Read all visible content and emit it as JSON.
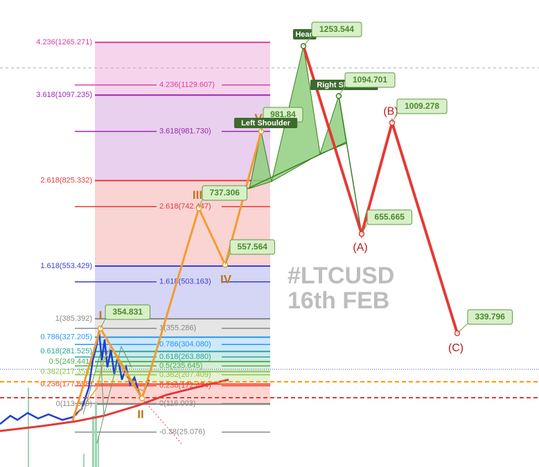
{
  "chart_data": {
    "type": "elliott-wave",
    "watermark": {
      "ticker": "#LTCUSD",
      "date": "16th FEB"
    },
    "fib_left": [
      {
        "value": 1265.271,
        "label": "4.236(1265.271)",
        "color": "#d63fa8"
      },
      {
        "value": 1097.235,
        "label": "3.618(1097.235)",
        "color": "#9c27b0"
      },
      {
        "value": 825.332,
        "label": "2.618(825.332)",
        "color": "#e53935"
      },
      {
        "value": 553.429,
        "label": "1.618(553.429)",
        "color": "#3f3fd0"
      },
      {
        "value": 385.392,
        "label": "1(385.392)",
        "color": "#888888"
      },
      {
        "value": 327.205,
        "label": "0.786(327.205)",
        "color": "#2196f3"
      },
      {
        "value": 281.525,
        "label": "0.618(281.525)",
        "color": "#26a69a"
      },
      {
        "value": 249.441,
        "label": "0.5(249.441)",
        "color": "#4caf50"
      },
      {
        "value": 217.358,
        "label": "0.382(217.358)",
        "color": "#8bc34a"
      },
      {
        "value": 177.658,
        "label": "0.236(177.658)",
        "color": "#f44336"
      },
      {
        "value": 113.889,
        "label": "0(113.889)",
        "color": "#888888"
      }
    ],
    "fib_right": [
      {
        "value": 1129.607,
        "label": "4.236(1129.607)",
        "color": "#d63fa8"
      },
      {
        "value": 981.73,
        "label": "3.618(981.730)",
        "color": "#9c27b0"
      },
      {
        "value": 742.447,
        "label": "2.618(742.447)",
        "color": "#e53935"
      },
      {
        "value": 503.163,
        "label": "1.618(503.163)",
        "color": "#3f3fd0"
      },
      {
        "value": 355.286,
        "label": "1(355.286)",
        "color": "#888888"
      },
      {
        "value": 304.08,
        "label": "0.786(304.080)",
        "color": "#2196f3"
      },
      {
        "value": 263.88,
        "label": "0.618(263.880)",
        "color": "#26a69a"
      },
      {
        "value": 235.645,
        "label": "0.5(235.645)",
        "color": "#4caf50"
      },
      {
        "value": 207.409,
        "label": "0.382(207.409)",
        "color": "#8bc34a"
      },
      {
        "value": 172.474,
        "label": "0.236(172.474)",
        "color": "#f44336"
      },
      {
        "value": 116.003,
        "label": "0(116.003)",
        "color": "#888888"
      },
      {
        "value": 25.076,
        "label": "-0.38(25.076)",
        "color": "#888888"
      }
    ],
    "waves": [
      {
        "label": "I",
        "price": 354.831
      },
      {
        "label": "II"
      },
      {
        "label": "III",
        "price": 737.306
      },
      {
        "label": "IV",
        "price": 557.564
      },
      {
        "label": "V",
        "price": 981.84
      }
    ],
    "pattern": [
      {
        "label": "Left Shoulder"
      },
      {
        "label": "Head",
        "price": 1253.544
      },
      {
        "label": "Right Shoulder",
        "price": 1094.701
      }
    ],
    "corrections": [
      {
        "label": "(A)",
        "price": 655.665
      },
      {
        "label": "(B)",
        "price": 1009.278
      },
      {
        "label": "(C)",
        "price": 339.796
      }
    ]
  }
}
